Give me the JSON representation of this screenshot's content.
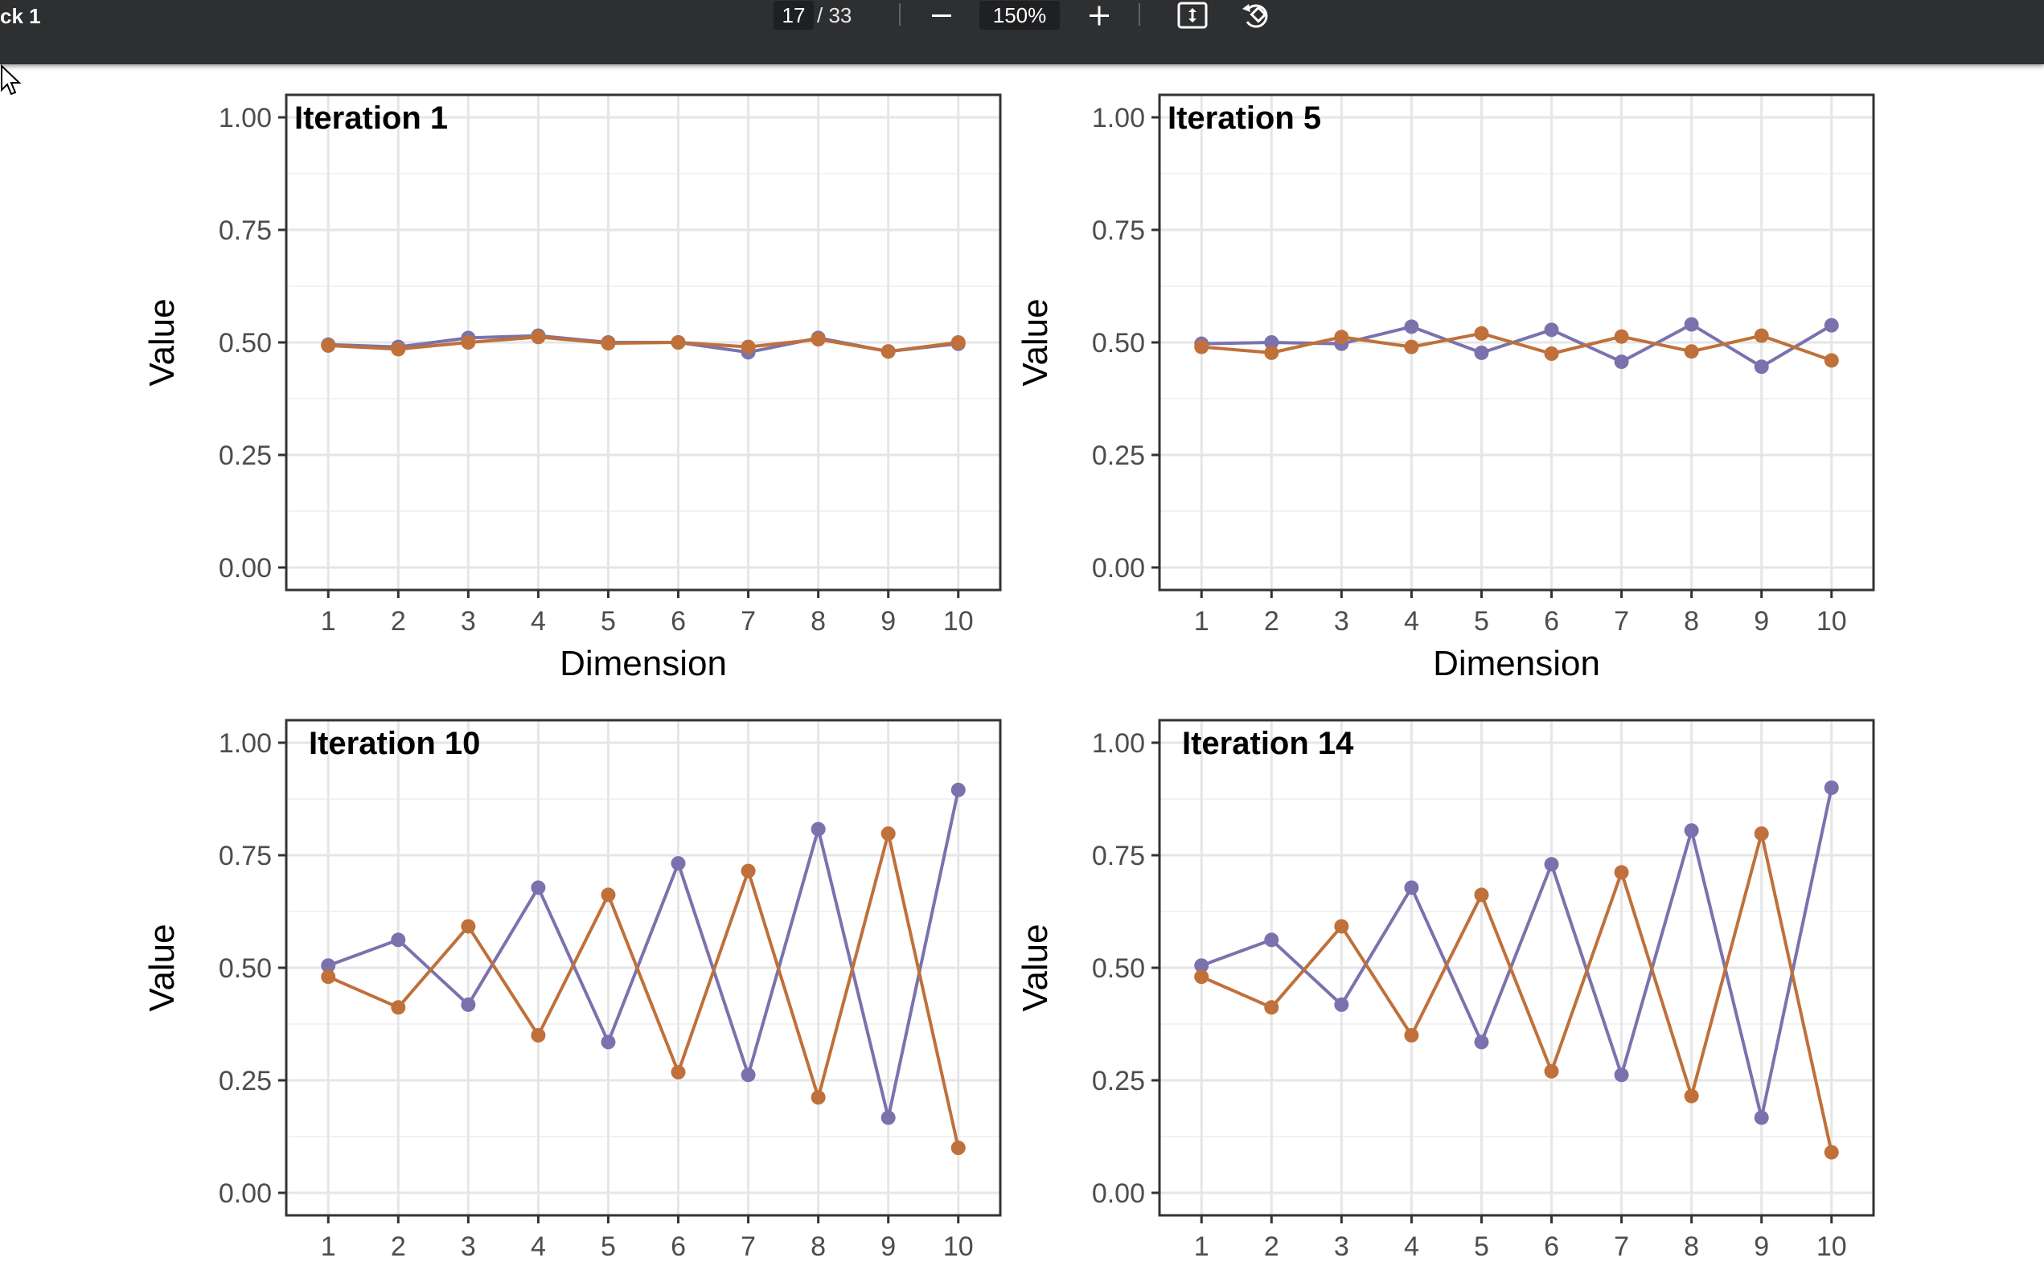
{
  "toolbar": {
    "doc_title": "ck 1",
    "page_current": "17",
    "page_total": "/ 33",
    "zoom": "150%",
    "icons": [
      "minus-icon",
      "plus-icon",
      "fit-page-icon",
      "rotate-icon"
    ]
  },
  "chart_data": [
    {
      "type": "line",
      "title": "Iteration 1",
      "xlabel": "Dimension",
      "ylabel": "Value",
      "x": [
        1,
        2,
        3,
        4,
        5,
        6,
        7,
        8,
        9,
        10
      ],
      "xticks": [
        "1",
        "2",
        "3",
        "4",
        "5",
        "6",
        "7",
        "8",
        "9",
        "10"
      ],
      "yticks": [
        "0.00",
        "0.25",
        "0.50",
        "0.75",
        "1.00"
      ],
      "ylim": [
        0,
        1
      ],
      "grid": true,
      "series": [
        {
          "color": "#7b72ad",
          "values": [
            0.495,
            0.49,
            0.51,
            0.515,
            0.5,
            0.5,
            0.478,
            0.51,
            0.48,
            0.497
          ]
        },
        {
          "color": "#c0703a",
          "values": [
            0.493,
            0.485,
            0.5,
            0.512,
            0.498,
            0.5,
            0.49,
            0.507,
            0.48,
            0.5
          ]
        }
      ]
    },
    {
      "type": "line",
      "title": "Iteration 5",
      "xlabel": "Dimension",
      "ylabel": "Value",
      "x": [
        1,
        2,
        3,
        4,
        5,
        6,
        7,
        8,
        9,
        10
      ],
      "xticks": [
        "1",
        "2",
        "3",
        "4",
        "5",
        "6",
        "7",
        "8",
        "9",
        "10"
      ],
      "yticks": [
        "0.00",
        "0.25",
        "0.50",
        "0.75",
        "1.00"
      ],
      "ylim": [
        0,
        1
      ],
      "grid": true,
      "series": [
        {
          "color": "#7b72ad",
          "values": [
            0.497,
            0.5,
            0.497,
            0.535,
            0.477,
            0.528,
            0.457,
            0.54,
            0.446,
            0.538
          ]
        },
        {
          "color": "#c0703a",
          "values": [
            0.49,
            0.477,
            0.512,
            0.49,
            0.52,
            0.475,
            0.513,
            0.48,
            0.515,
            0.46
          ]
        }
      ]
    },
    {
      "type": "line",
      "title": "Iteration 10",
      "xlabel": "",
      "ylabel": "Value",
      "x": [
        1,
        2,
        3,
        4,
        5,
        6,
        7,
        8,
        9,
        10
      ],
      "xticks": [
        "1",
        "2",
        "3",
        "4",
        "5",
        "6",
        "7",
        "8",
        "9",
        "10"
      ],
      "yticks": [
        "0.00",
        "0.25",
        "0.50",
        "0.75",
        "1.00"
      ],
      "ylim": [
        0,
        1
      ],
      "grid": true,
      "series": [
        {
          "color": "#7b72ad",
          "values": [
            0.505,
            0.562,
            0.418,
            0.678,
            0.335,
            0.732,
            0.262,
            0.808,
            0.167,
            0.895
          ]
        },
        {
          "color": "#c0703a",
          "values": [
            0.48,
            0.412,
            0.592,
            0.35,
            0.662,
            0.268,
            0.715,
            0.212,
            0.798,
            0.1
          ]
        }
      ]
    },
    {
      "type": "line",
      "title": "Iteration 14",
      "xlabel": "",
      "ylabel": "Value",
      "x": [
        1,
        2,
        3,
        4,
        5,
        6,
        7,
        8,
        9,
        10
      ],
      "xticks": [
        "1",
        "2",
        "3",
        "4",
        "5",
        "6",
        "7",
        "8",
        "9",
        "10"
      ],
      "yticks": [
        "0.00",
        "0.25",
        "0.50",
        "0.75",
        "1.00"
      ],
      "ylim": [
        0,
        1
      ],
      "grid": true,
      "series": [
        {
          "color": "#7b72ad",
          "values": [
            0.505,
            0.562,
            0.418,
            0.678,
            0.335,
            0.73,
            0.262,
            0.805,
            0.167,
            0.9
          ]
        },
        {
          "color": "#c0703a",
          "values": [
            0.48,
            0.412,
            0.592,
            0.35,
            0.662,
            0.27,
            0.712,
            0.215,
            0.798,
            0.09
          ]
        }
      ]
    }
  ]
}
